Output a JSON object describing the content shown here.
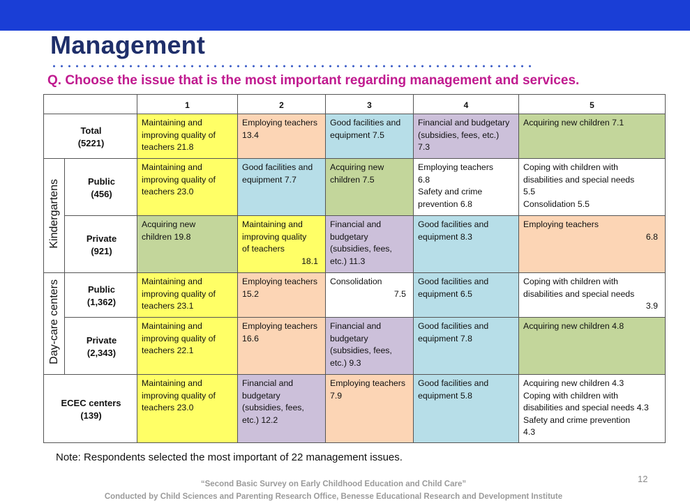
{
  "slide": {
    "title": "Management",
    "question": "Q. Choose the issue that is the most important regarding management and services.",
    "note": "Note:  Respondents selected the most important of 22 management issues.",
    "page_number": "12",
    "source_line1": "“Second Basic Survey on Early Childhood Education and Child Care”",
    "source_line2": "Conducted by Child Sciences and Parenting Research Office,  Benesse Educational Research and Development Institute",
    "colors": {
      "top_bar": "#1a3ed6",
      "title": "#1f2f6a",
      "question": "#c01a8f",
      "yellow": "#ffff66",
      "peach": "#fcd5b5",
      "blue": "#b7dee8",
      "purple": "#ccc0da",
      "green": "#c3d69b"
    }
  },
  "table": {
    "columns": [
      "1",
      "2",
      "3",
      "4",
      "5"
    ],
    "groups": {
      "kindergartens": "Kindergartens",
      "daycare": "Day-care centers"
    },
    "rows": [
      {
        "label": "Total",
        "n": "(5221)",
        "cells": [
          {
            "color": "yellow",
            "text": "Maintaining and\nimproving quality of\nteachers     21.8"
          },
          {
            "color": "peach",
            "text": "Employing teachers\n13.4"
          },
          {
            "color": "blue",
            "text": "Good facilities and\nequipment  7.5"
          },
          {
            "color": "purple",
            "text": "Financial and budgetary\n(subsidies, fees, etc.)\n7.3"
          },
          {
            "color": "green",
            "text": "Acquiring new children         7.1"
          }
        ]
      },
      {
        "label": "Public",
        "n": "(456)",
        "cells": [
          {
            "color": "yellow",
            "text": "Maintaining and\nimproving quality of\nteachers     23.0"
          },
          {
            "color": "blue",
            "text": "Good facilities and\nequipment  7.7"
          },
          {
            "color": "green",
            "text": "Acquiring new\nchildren  7.5"
          },
          {
            "color": "white",
            "text": "Employing teachers\n6.8\nSafety and crime\nprevention   6.8"
          },
          {
            "color": "white",
            "text": "Coping with children with\ndisabilities and special needs\n5.5\nConsolidation  5.5"
          }
        ]
      },
      {
        "label": "Private",
        "n": "(921)",
        "cells": [
          {
            "color": "green",
            "text": "Acquiring new\nchildren      19.8"
          },
          {
            "color": "yellow",
            "text": "Maintaining and\nimproving quality\nof teachers",
            "value": "18.1"
          },
          {
            "color": "purple",
            "text": "Financial and\nbudgetary\n(subsidies, fees,\netc.)        11.3"
          },
          {
            "color": "blue",
            "text": "Good facilities and\nequipment         8.3"
          },
          {
            "color": "peach",
            "text": "Employing teachers",
            "value": "6.8"
          }
        ]
      },
      {
        "label": "Public",
        "n": "(1,362)",
        "cells": [
          {
            "color": "yellow",
            "text": "Maintaining and\nimproving quality of\nteachers      23.1"
          },
          {
            "color": "peach",
            "text": "Employing teachers\n15.2"
          },
          {
            "color": "white",
            "text": "Consolidation",
            "value": "7.5"
          },
          {
            "color": "blue",
            "text": "Good facilities and\nequipment         6.5"
          },
          {
            "color": "white",
            "text": "Coping with children with\ndisabilities and special needs",
            "value": "3.9"
          }
        ]
      },
      {
        "label": "Private",
        "n": "(2,343)",
        "cells": [
          {
            "color": "yellow",
            "text": "Maintaining and\nimproving quality of\nteachers      22.1"
          },
          {
            "color": "peach",
            "text": "Employing teachers\n16.6"
          },
          {
            "color": "purple",
            "text": "Financial and\nbudgetary\n(subsidies, fees,\netc.)               9.3"
          },
          {
            "color": "blue",
            "text": "Good facilities and\nequipment    7.8"
          },
          {
            "color": "green",
            "text": "Acquiring new children          4.8"
          }
        ]
      },
      {
        "label": "ECEC centers",
        "n": "(139)",
        "cells": [
          {
            "color": "yellow",
            "text": "Maintaining and\nimproving quality of\nteachers      23.0"
          },
          {
            "color": "purple",
            "text": "Financial and\nbudgetary\n(subsidies, fees,\netc.)              12.2"
          },
          {
            "color": "peach",
            "text": "Employing teachers\n7.9"
          },
          {
            "color": "blue",
            "text": "Good facilities and\nequipment         5.8"
          },
          {
            "color": "white",
            "text": "Acquiring new children          4.3\nCoping with children with\ndisabilities and special needs  4.3\nSafety and crime prevention\n4.3"
          }
        ]
      }
    ]
  }
}
